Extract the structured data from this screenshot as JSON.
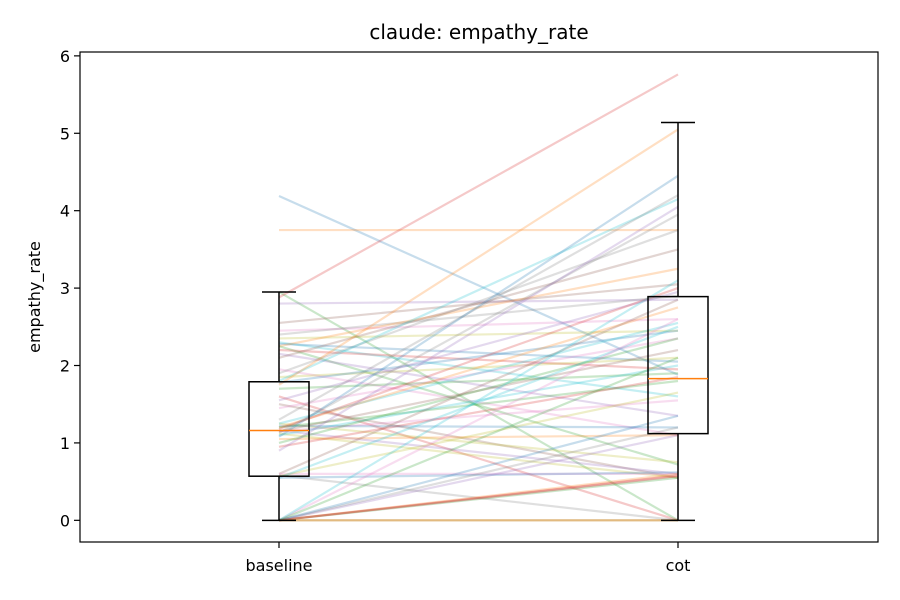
{
  "chart_data": {
    "type": "box",
    "title": "claude: empathy_rate",
    "xlabel": "",
    "ylabel": "empathy_rate",
    "categories": [
      "baseline",
      "cot"
    ],
    "ylim": [
      -0.28,
      6.05
    ],
    "yticks": [
      0,
      1,
      2,
      3,
      4,
      5,
      6
    ],
    "grid": false,
    "boxes": [
      {
        "name": "baseline",
        "whisker_low": 0.0,
        "q1": 0.57,
        "median": 1.16,
        "q3": 1.79,
        "whisker_high": 2.95
      },
      {
        "name": "cot",
        "whisker_low": 0.0,
        "q1": 1.12,
        "median": 1.83,
        "q3": 2.89,
        "whisker_high": 5.14
      }
    ],
    "paired_lines": [
      [
        4.19,
        1.88
      ],
      [
        3.75,
        3.75
      ],
      [
        2.95,
        0.0
      ],
      [
        2.88,
        5.76
      ],
      [
        2.8,
        2.85
      ],
      [
        2.55,
        3.05
      ],
      [
        2.45,
        2.6
      ],
      [
        2.4,
        2.9
      ],
      [
        2.35,
        2.45
      ],
      [
        2.3,
        1.6
      ],
      [
        2.28,
        2.05
      ],
      [
        2.25,
        3.25
      ],
      [
        2.25,
        0.72
      ],
      [
        2.2,
        1.95
      ],
      [
        2.15,
        1.35
      ],
      [
        2.1,
        3.5
      ],
      [
        1.95,
        1.1
      ],
      [
        1.9,
        3.75
      ],
      [
        1.85,
        2.1
      ],
      [
        1.8,
        4.15
      ],
      [
        1.78,
        2.45
      ],
      [
        1.75,
        5.05
      ],
      [
        1.7,
        1.9
      ],
      [
        1.6,
        0.0
      ],
      [
        1.55,
        2.95
      ],
      [
        1.5,
        0.55
      ],
      [
        1.45,
        2.35
      ],
      [
        1.3,
        4.2
      ],
      [
        1.25,
        0.75
      ],
      [
        1.25,
        2.55
      ],
      [
        1.22,
        1.2
      ],
      [
        1.2,
        2.75
      ],
      [
        1.2,
        1.8
      ],
      [
        1.18,
        3.0
      ],
      [
        1.16,
        0.6
      ],
      [
        1.15,
        2.2
      ],
      [
        1.15,
        1.55
      ],
      [
        1.13,
        3.95
      ],
      [
        1.12,
        0.55
      ],
      [
        1.1,
        2.0
      ],
      [
        1.08,
        4.45
      ],
      [
        1.05,
        1.1
      ],
      [
        1.0,
        2.35
      ],
      [
        0.95,
        1.85
      ],
      [
        0.9,
        4.05
      ],
      [
        0.6,
        2.85
      ],
      [
        0.6,
        0.6
      ],
      [
        0.58,
        0.0
      ],
      [
        0.57,
        1.65
      ],
      [
        0.55,
        2.5
      ],
      [
        0.55,
        0.62
      ],
      [
        0.0,
        0.6
      ],
      [
        0.0,
        0.55
      ],
      [
        0.0,
        0.58
      ],
      [
        0.0,
        1.1
      ],
      [
        0.0,
        0.0
      ],
      [
        0.0,
        2.6
      ],
      [
        0.0,
        1.2
      ],
      [
        0.0,
        0.0
      ],
      [
        0.0,
        3.1
      ],
      [
        0.0,
        1.35
      ],
      [
        0.0,
        0.0
      ],
      [
        0.0,
        2.1
      ],
      [
        0.0,
        0.57
      ]
    ],
    "line_colors": [
      "#1f77b4",
      "#ff7f0e",
      "#2ca02c",
      "#d62728",
      "#9467bd",
      "#8c564b",
      "#e377c2",
      "#7f7f7f",
      "#bcbd22",
      "#17becf"
    ],
    "box_color": "#000000",
    "median_color": "#ff7f0e"
  }
}
